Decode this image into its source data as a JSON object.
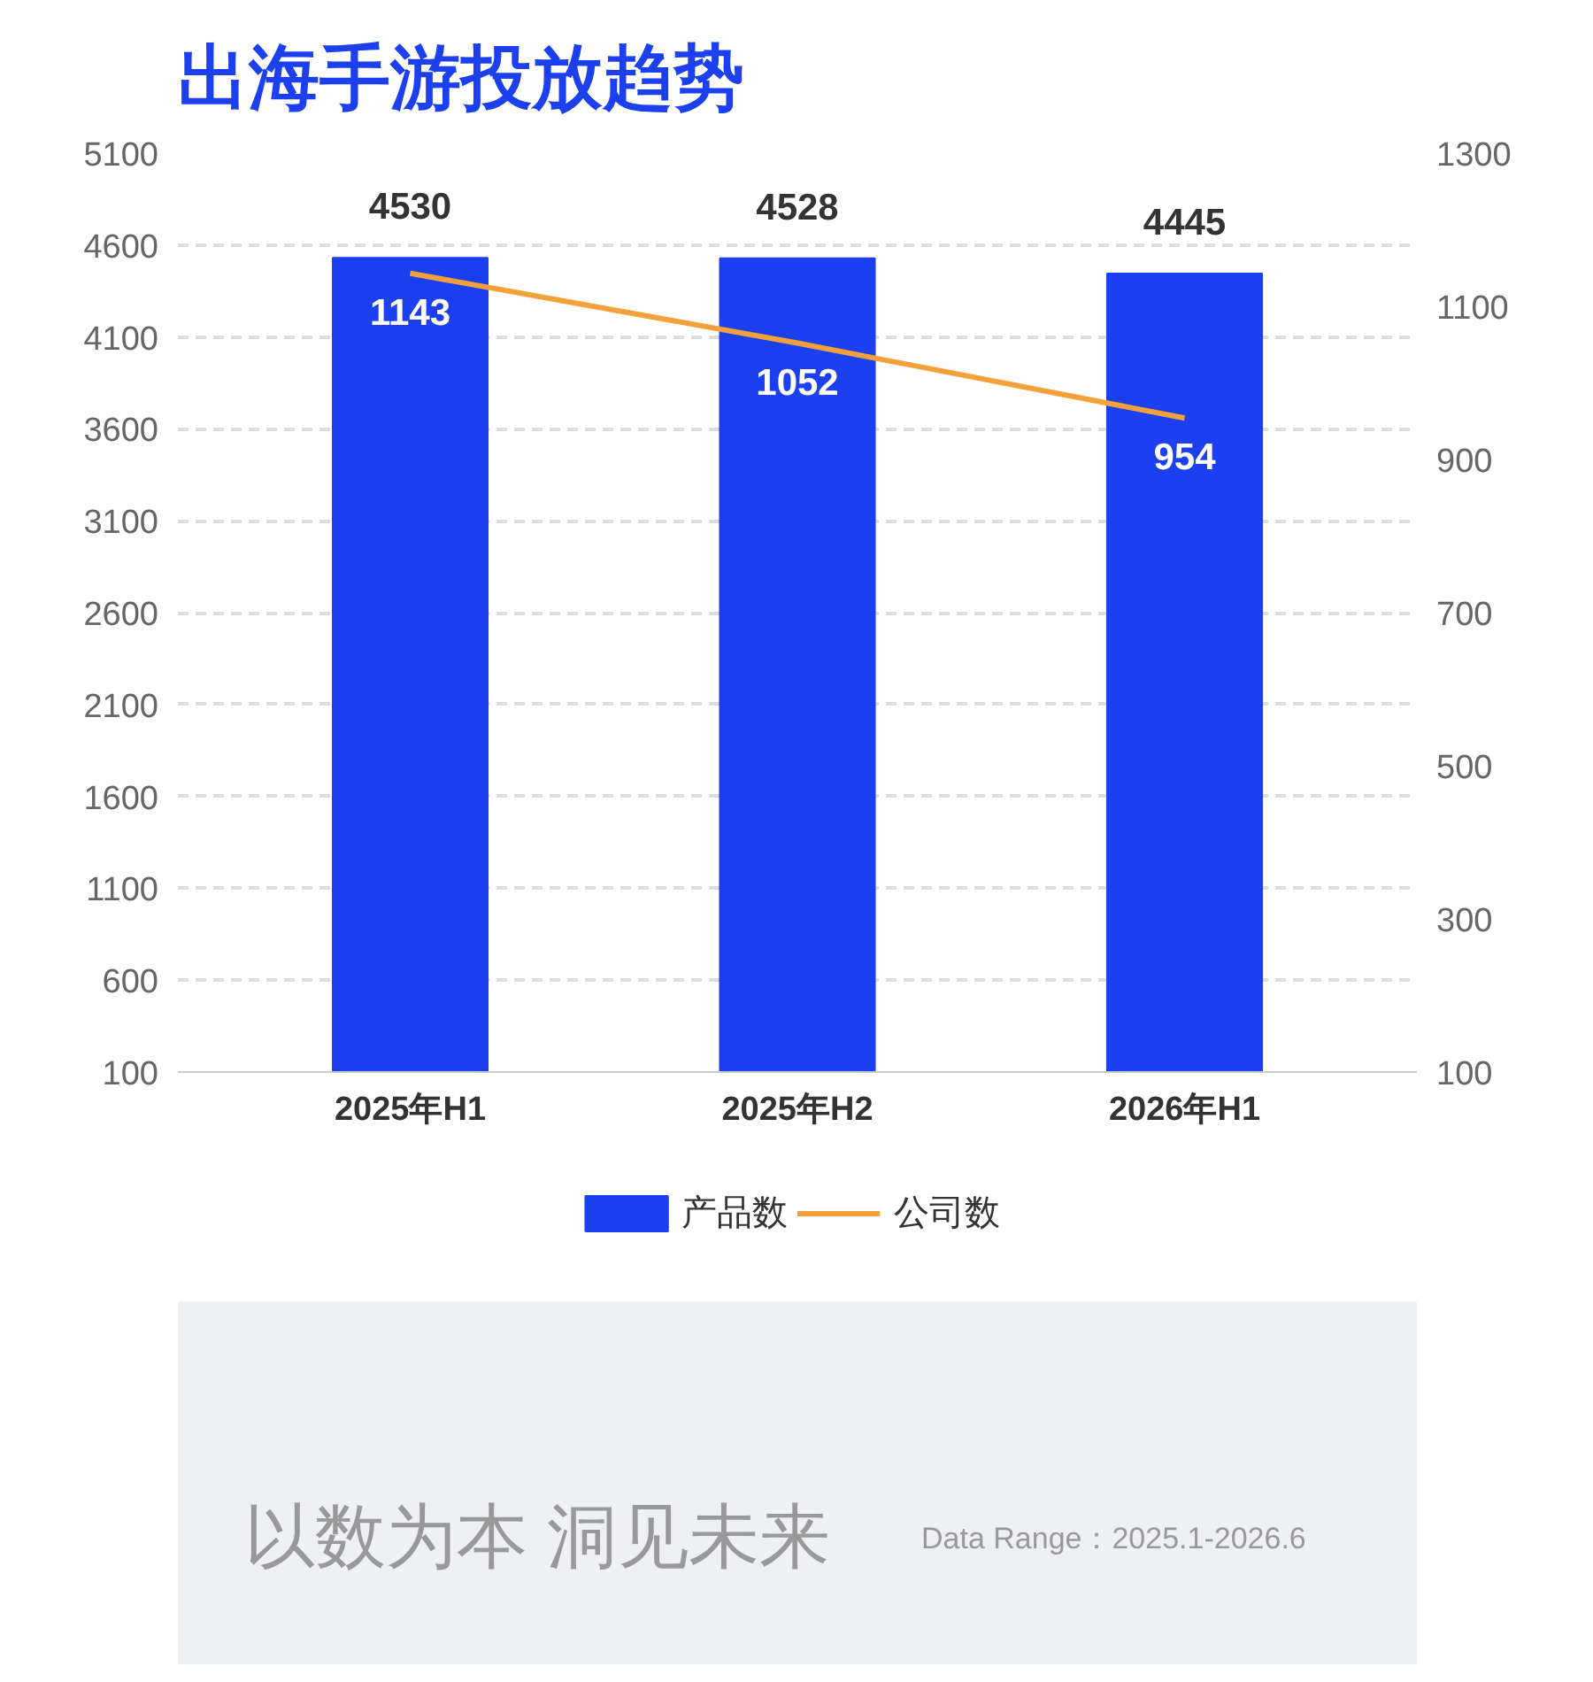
{
  "chart_data": {
    "type": "bar",
    "title": "出海手游投放趋势",
    "categories": [
      "2025年H1",
      "2025年H2",
      "2026年H1"
    ],
    "series": [
      {
        "name": "产品数",
        "type": "bar",
        "color": "#1c3ff0",
        "values": [
          4530,
          4528,
          4445
        ]
      },
      {
        "name": "公司数",
        "type": "line",
        "color": "#f5a13b",
        "axis": "y2",
        "values": [
          1143,
          1052,
          954
        ]
      }
    ],
    "ylim": [
      100,
      5100
    ],
    "yticks": [
      100,
      600,
      1100,
      1600,
      2100,
      2600,
      3100,
      3600,
      4100,
      4600,
      5100
    ],
    "y2lim": [
      100,
      1300
    ],
    "y2ticks": [
      100,
      300,
      500,
      700,
      900,
      1100,
      1300
    ],
    "grid": "y",
    "legend": "bottom",
    "data_labels": true,
    "marker": "none",
    "line_style": "solid",
    "annotations": [
      "以数为本 洞见未来",
      "Data Range：2025.1-2026.6"
    ]
  }
}
